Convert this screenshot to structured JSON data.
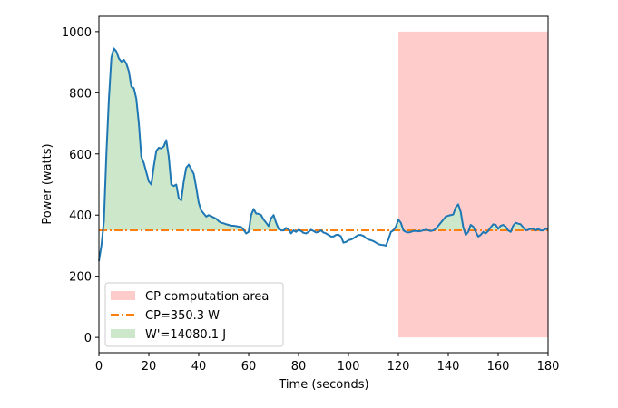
{
  "chart_data": {
    "type": "line",
    "xlabel": "Time (seconds)",
    "ylabel": "Power (watts)",
    "xlim": [
      0,
      180
    ],
    "ylim": [
      -50,
      1050
    ],
    "x_ticks": [
      0,
      20,
      40,
      60,
      80,
      100,
      120,
      140,
      160,
      180
    ],
    "y_ticks": [
      0,
      200,
      400,
      600,
      800,
      1000
    ],
    "grid": false,
    "legend_position": "lower-left",
    "colors": {
      "power_line": "#1f77b4",
      "cp_line": "#ff7f0e",
      "cp_area": "#ffcccc",
      "w_prime_fill": "#cde7ca",
      "axes": "#000000"
    },
    "cp_area": {
      "x_start": 120,
      "x_end": 180,
      "y_start": 0,
      "y_end": 1000
    },
    "cp_value": 350.3,
    "legend": [
      {
        "key": "cp_area",
        "label": "CP computation area"
      },
      {
        "key": "cp_line",
        "label": "CP=350.3 W"
      },
      {
        "key": "w_prime",
        "label": "W'=14080.1 J"
      }
    ],
    "series": [
      {
        "x": [
          0,
          1,
          2,
          3,
          4,
          5,
          6,
          7,
          8,
          9,
          10,
          11,
          12,
          13,
          14,
          15,
          16,
          17,
          18,
          19,
          20,
          21,
          22,
          23,
          24,
          25,
          26,
          27,
          28,
          29,
          30,
          31,
          32,
          33,
          34,
          35,
          36,
          37,
          38,
          39,
          40,
          41,
          42,
          43,
          44,
          45,
          46,
          47,
          48,
          49,
          50,
          51,
          52,
          53,
          54,
          55,
          56,
          57,
          58,
          59,
          60,
          61,
          62,
          63,
          64,
          65,
          66,
          67,
          68,
          69,
          70,
          71,
          72,
          73,
          74,
          75,
          76,
          77,
          78,
          79,
          80,
          81,
          82,
          83,
          84,
          85,
          86,
          87,
          88,
          89,
          90,
          91,
          92,
          93,
          94,
          95,
          96,
          97,
          98,
          99,
          100,
          101,
          102,
          103,
          104,
          105,
          106,
          107,
          108,
          109,
          110,
          111,
          112,
          113,
          114,
          115,
          116,
          117,
          118,
          119,
          120,
          121,
          122,
          123,
          124,
          125,
          126,
          127,
          128,
          129,
          130,
          131,
          132,
          133,
          134,
          135,
          136,
          137,
          138,
          139,
          140,
          141,
          142,
          143,
          144,
          145,
          146,
          147,
          148,
          149,
          150,
          151,
          152,
          153,
          154,
          155,
          156,
          157,
          158,
          159,
          160,
          161,
          162,
          163,
          164,
          165,
          166,
          167,
          168,
          169,
          170,
          171,
          172,
          173,
          174,
          175,
          176,
          177,
          178,
          179,
          180
        ],
        "y": [
          250,
          300,
          380,
          600,
          780,
          915,
          945,
          935,
          912,
          902,
          908,
          895,
          870,
          820,
          815,
          780,
          700,
          590,
          570,
          540,
          510,
          500,
          560,
          610,
          620,
          618,
          625,
          645,
          590,
          500,
          495,
          500,
          455,
          448,
          510,
          555,
          565,
          550,
          535,
          490,
          440,
          415,
          405,
          395,
          400,
          396,
          392,
          388,
          380,
          375,
          373,
          370,
          368,
          365,
          365,
          364,
          362,
          361,
          352,
          340,
          345,
          400,
          420,
          405,
          404,
          400,
          385,
          375,
          364,
          390,
          400,
          375,
          355,
          350,
          350,
          358,
          353,
          340,
          350,
          345,
          352,
          348,
          342,
          340,
          345,
          352,
          348,
          343,
          345,
          350,
          343,
          340,
          335,
          330,
          330,
          335,
          336,
          330,
          310,
          312,
          318,
          320,
          324,
          330,
          335,
          335,
          332,
          325,
          320,
          318,
          315,
          310,
          305,
          303,
          302,
          300,
          320,
          345,
          350,
          362,
          385,
          375,
          350,
          345,
          343,
          345,
          348,
          348,
          347,
          348,
          350,
          352,
          350,
          348,
          350,
          355,
          365,
          375,
          385,
          395,
          398,
          400,
          402,
          425,
          435,
          410,
          360,
          335,
          345,
          368,
          362,
          345,
          330,
          335,
          345,
          340,
          348,
          360,
          370,
          368,
          355,
          365,
          368,
          362,
          350,
          345,
          365,
          375,
          372,
          370,
          360,
          350,
          352,
          355,
          355,
          350,
          355,
          350,
          350,
          355,
          354
        ]
      }
    ]
  }
}
